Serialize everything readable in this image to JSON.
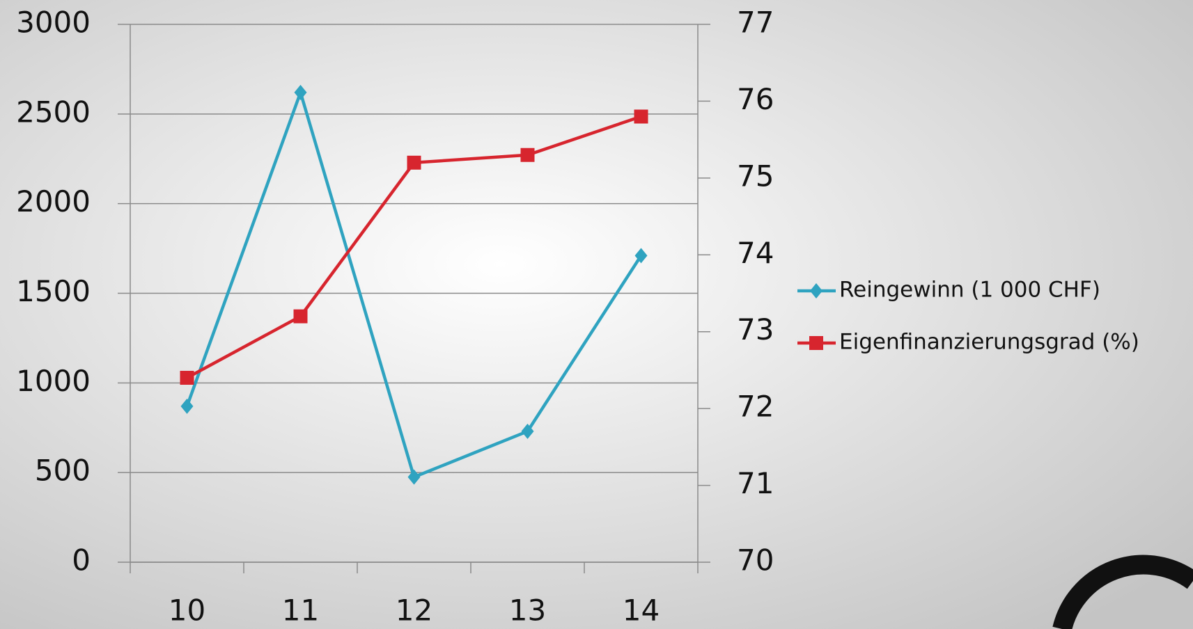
{
  "chart_data": {
    "type": "line",
    "categories": [
      "10",
      "11",
      "12",
      "13",
      "14"
    ],
    "series": [
      {
        "name": "Reingewinn (1 000 CHF)",
        "color": "#2fa3c0",
        "marker": "diamond",
        "values": [
          870,
          2620,
          475,
          730,
          1710
        ]
      },
      {
        "name": "Eigenfinanzierungsgrad (%)",
        "color": "#d7252e",
        "marker": "square",
        "axis": "y2",
        "values": [
          72.4,
          73.2,
          75.2,
          75.3,
          75.8
        ]
      }
    ],
    "ylim": [
      0,
      3000
    ],
    "yticks": [
      0,
      500,
      1000,
      1500,
      2000,
      2500,
      3000
    ],
    "y2lim": [
      70,
      77
    ],
    "y2ticks": [
      70,
      71,
      72,
      73,
      74,
      75,
      76,
      77
    ],
    "grid": true,
    "legend": "right"
  }
}
